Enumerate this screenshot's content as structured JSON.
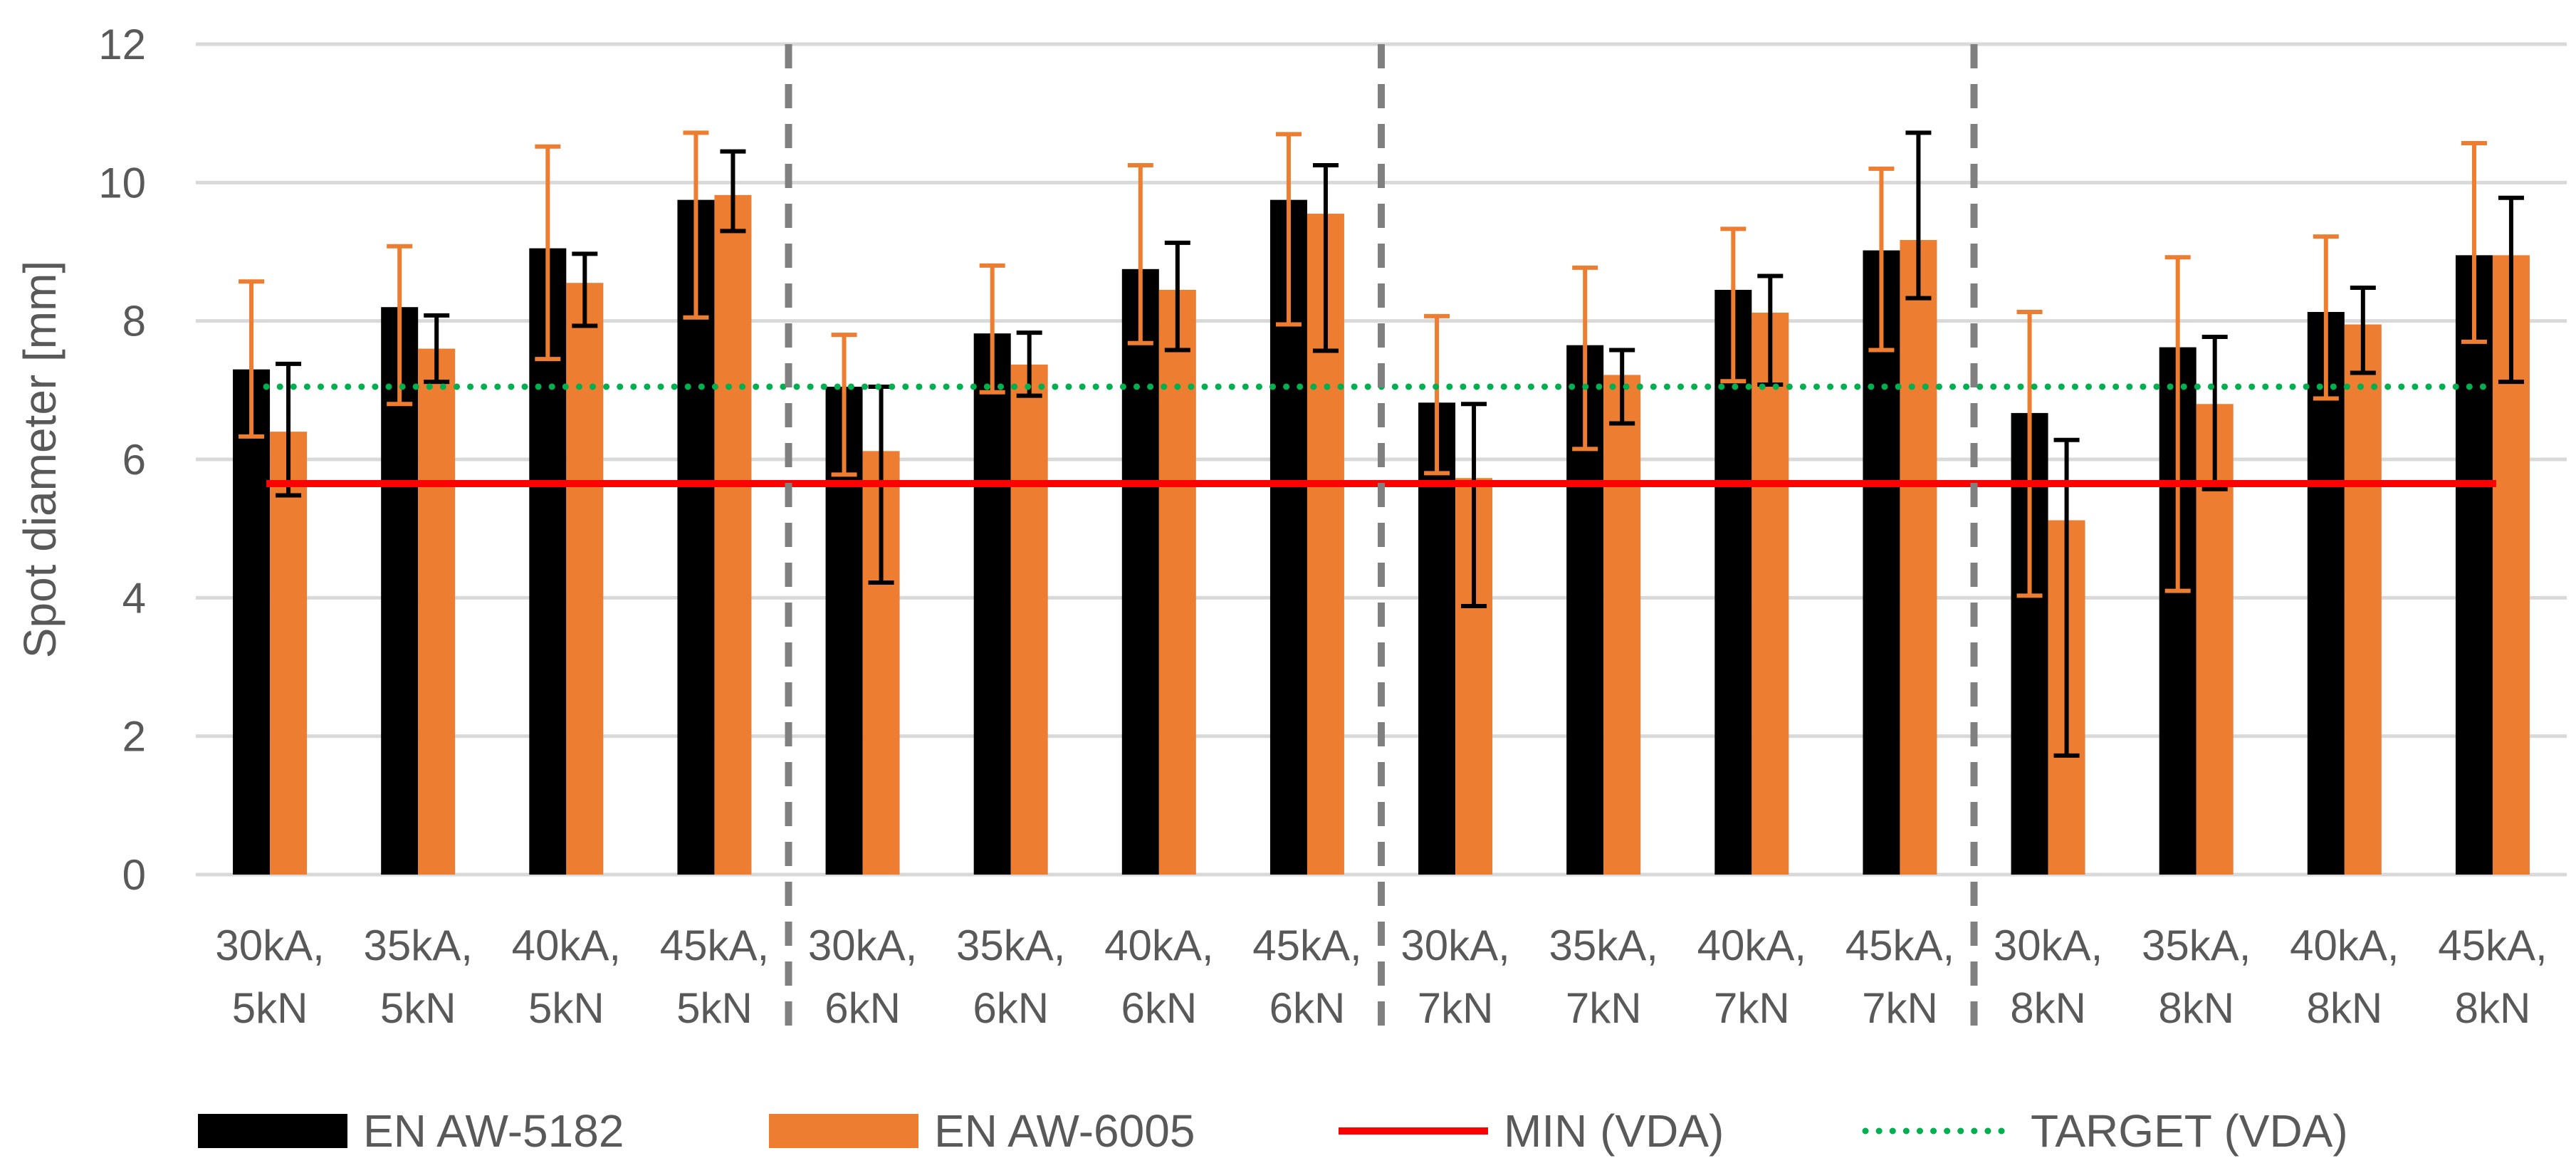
{
  "chart_data": {
    "type": "bar",
    "ylabel": "Spot diameter [mm]",
    "xlabel": "",
    "ylim": [
      0,
      12
    ],
    "yticks": [
      0,
      2,
      4,
      6,
      8,
      10,
      12
    ],
    "grid": true,
    "legend_position": "bottom",
    "categories": [
      [
        "30kA,",
        "5kN"
      ],
      [
        "35kA,",
        "5kN"
      ],
      [
        "40kA,",
        "5kN"
      ],
      [
        "45kA,",
        "5kN"
      ],
      [
        "30kA,",
        "6kN"
      ],
      [
        "35kA,",
        "6kN"
      ],
      [
        "40kA,",
        "6kN"
      ],
      [
        "45kA,",
        "6kN"
      ],
      [
        "30kA,",
        "7kN"
      ],
      [
        "35kA,",
        "7kN"
      ],
      [
        "40kA,",
        "7kN"
      ],
      [
        "45kA,",
        "7kN"
      ],
      [
        "30kA,",
        "8kN"
      ],
      [
        "35kA,",
        "8kN"
      ],
      [
        "40kA,",
        "8kN"
      ],
      [
        "45kA,",
        "8kN"
      ]
    ],
    "group_separators_after": [
      4,
      8,
      12
    ],
    "series": [
      {
        "name": "EN AW-5182",
        "color": "#000000",
        "values": [
          7.3,
          8.2,
          9.05,
          9.75,
          7.05,
          7.82,
          8.75,
          9.75,
          6.82,
          7.65,
          8.45,
          9.02,
          6.67,
          7.62,
          8.13,
          8.95
        ],
        "err_low": [
          6.33,
          6.8,
          7.45,
          8.05,
          5.78,
          6.97,
          7.68,
          7.95,
          5.8,
          6.15,
          7.13,
          7.58,
          4.03,
          4.1,
          6.88,
          7.7
        ],
        "err_high": [
          8.57,
          9.08,
          10.52,
          10.72,
          7.8,
          8.8,
          10.25,
          10.7,
          8.07,
          8.77,
          9.33,
          10.2,
          8.13,
          8.92,
          9.22,
          10.57
        ],
        "err_color": "#ED7D31"
      },
      {
        "name": "EN AW-6005",
        "color": "#ED7D31",
        "values": [
          6.4,
          7.6,
          8.55,
          9.82,
          6.12,
          7.37,
          8.45,
          9.55,
          5.73,
          7.22,
          8.12,
          9.17,
          5.12,
          6.8,
          7.95,
          8.95
        ],
        "err_low": [
          5.48,
          7.12,
          7.93,
          9.3,
          4.22,
          6.92,
          7.58,
          7.57,
          3.88,
          6.52,
          7.08,
          8.33,
          1.72,
          5.57,
          7.25,
          7.12
        ],
        "err_high": [
          7.38,
          8.08,
          8.97,
          10.45,
          7.05,
          7.83,
          9.13,
          10.25,
          6.8,
          7.58,
          8.65,
          10.72,
          6.28,
          7.77,
          8.48,
          9.78
        ],
        "err_color": "#000000"
      }
    ],
    "lines": [
      {
        "name": "MIN (VDA)",
        "value": 5.65,
        "color": "#FF0000",
        "style": "solid"
      },
      {
        "name": "TARGET (VDA)",
        "value": 7.05,
        "color": "#00B050",
        "style": "dotted"
      }
    ]
  }
}
